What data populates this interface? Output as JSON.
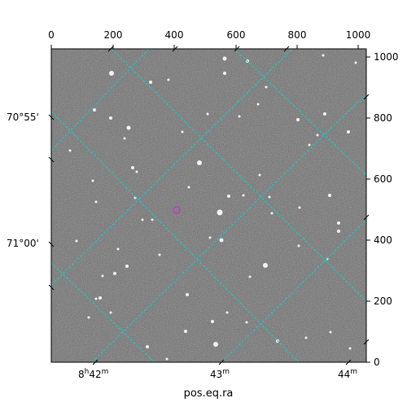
{
  "figure": {
    "xlabel": "pos.eq.ra",
    "top_ticks": [
      "0",
      "200",
      "400",
      "600",
      "800",
      "1000"
    ],
    "right_ticks": [
      "0",
      "200",
      "400",
      "600",
      "800",
      "1000"
    ],
    "left_ticks": [
      "70°55'",
      "71°00'"
    ],
    "bottom_ticks": [
      {
        "main": "8",
        "sup1": "h",
        "mid": "42",
        "sup2": "m"
      },
      {
        "main": "43",
        "sup1": "",
        "mid": "",
        "sup2": "m"
      },
      {
        "main": "44",
        "sup1": "",
        "mid": "",
        "sup2": "m"
      }
    ],
    "grid_color": "#22c4c4",
    "marker_color": "#cc33cc",
    "image_style": "grayscale star field (astronomical image)"
  }
}
